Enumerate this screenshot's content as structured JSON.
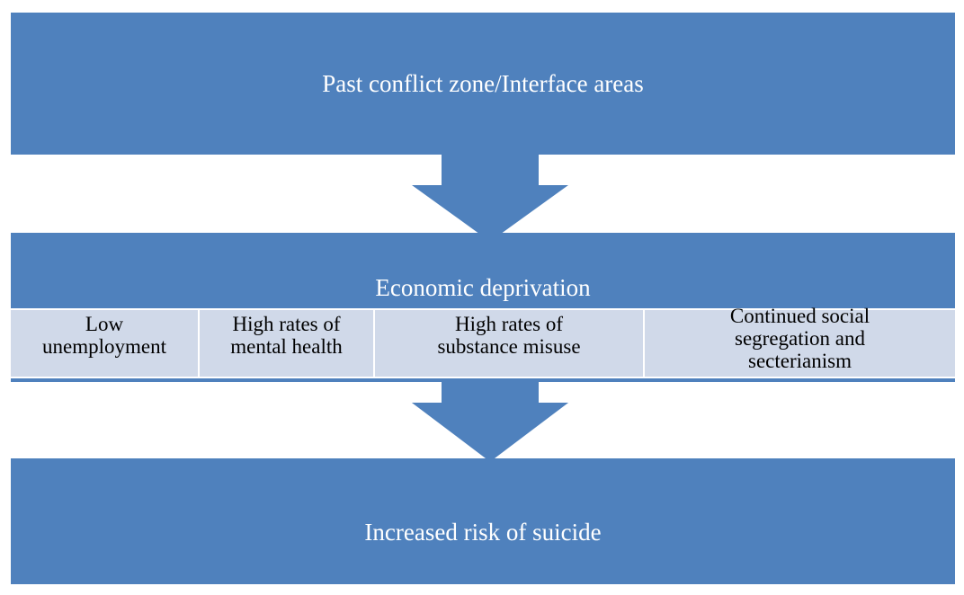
{
  "nodes": [
    {
      "label": "Past conflict zone/Interface areas"
    },
    {
      "label": "Economic deprivation",
      "children": [
        {
          "label": "Low unemployment"
        },
        {
          "label": "High rates of mental health"
        },
        {
          "label": "High rates of substance misuse"
        },
        {
          "label": "Continued social segregation and secterianism"
        }
      ]
    },
    {
      "label": "Increased risk of suicide"
    }
  ]
}
